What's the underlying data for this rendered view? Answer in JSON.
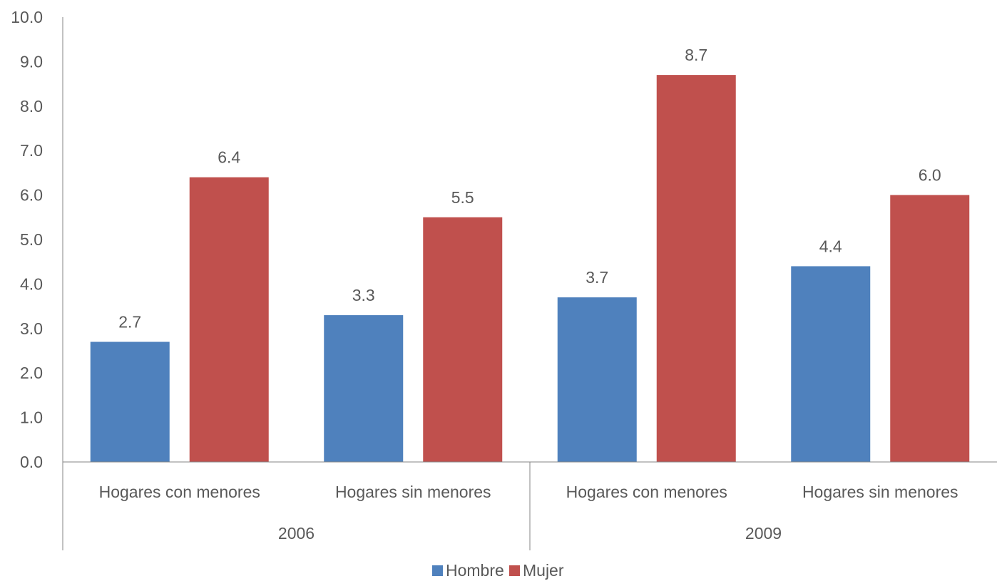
{
  "chart_data": {
    "type": "bar",
    "groups": [
      {
        "label": "2006",
        "categories": [
          "Hogares con menores",
          "Hogares sin menores"
        ]
      },
      {
        "label": "2009",
        "categories": [
          "Hogares con menores",
          "Hogares sin menores"
        ]
      }
    ],
    "categories": [
      "Hogares con menores",
      "Hogares sin menores",
      "Hogares con menores",
      "Hogares sin menores"
    ],
    "series": [
      {
        "name": "Hombre",
        "color": "#4f81bd",
        "values": [
          2.7,
          3.3,
          3.7,
          4.4
        ],
        "labels": [
          "2.7",
          "3.3",
          "3.7",
          "4.4"
        ]
      },
      {
        "name": "Mujer",
        "color": "#c0504d",
        "values": [
          6.4,
          5.5,
          8.7,
          6.0
        ],
        "labels": [
          "6.4",
          "5.5",
          "8.7",
          "6.0"
        ]
      }
    ],
    "ylim": [
      0,
      10
    ],
    "yticks": [
      "0.0",
      "1.0",
      "2.0",
      "3.0",
      "4.0",
      "5.0",
      "6.0",
      "7.0",
      "8.0",
      "9.0",
      "10.0"
    ],
    "grid": false,
    "legend": "bottom-center"
  }
}
